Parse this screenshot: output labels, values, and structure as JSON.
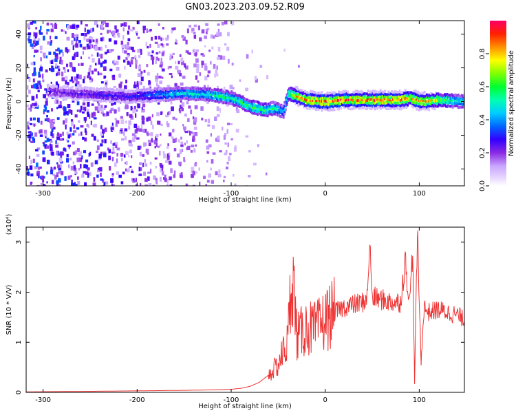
{
  "title": "GN03.2023.203.09.52.R09",
  "colorbar": {
    "label": "Normalized spectral amplitude",
    "ticks": [
      0.0,
      0.2,
      0.4,
      0.6,
      0.8
    ],
    "tick_labels": [
      "0.0",
      "0.2",
      "0.4",
      "0.6",
      "0.8"
    ],
    "range": [
      0,
      1
    ],
    "colors": [
      "#ffffff",
      "#e6d6ff",
      "#c9a6ff",
      "#8a2be2",
      "#6a00ff",
      "#3300ff",
      "#0033ff",
      "#00a0ff",
      "#00ffd0",
      "#00ff40",
      "#80ff00",
      "#ffff00",
      "#ffa000",
      "#ff2a00",
      "#ff0066"
    ]
  },
  "chart_data": [
    {
      "type": "heatmap",
      "xlabel": "Height of straight line (km)",
      "ylabel": "Frequency (Hz)",
      "xlim": [
        -318,
        148
      ],
      "ylim": [
        -50,
        48
      ],
      "xticks": [
        -300,
        -200,
        -100,
        0,
        100
      ],
      "xtick_labels": [
        "-300",
        "-200",
        "-100",
        "0",
        "100"
      ],
      "yticks": [
        -40,
        -20,
        0,
        20,
        40
      ],
      "ytick_labels": [
        "-40",
        "-20",
        "0",
        "20",
        "40"
      ],
      "ridge": {
        "x": [
          -295,
          -270,
          -240,
          -210,
          -180,
          -150,
          -120,
          -100,
          -80,
          -65,
          -55,
          -45,
          -40,
          -30,
          -20,
          0,
          20,
          40,
          60,
          80,
          90,
          100,
          120,
          148
        ],
        "y": [
          6,
          5,
          4,
          3,
          4,
          5,
          4,
          2,
          -3,
          -5,
          -4,
          -6,
          5,
          3,
          1,
          0,
          1,
          1,
          1,
          1,
          2,
          0,
          1,
          0
        ],
        "amplitude": [
          0.25,
          0.25,
          0.3,
          0.3,
          0.4,
          0.5,
          0.55,
          0.55,
          0.6,
          0.6,
          0.55,
          0.45,
          0.6,
          0.85,
          0.9,
          0.92,
          0.9,
          0.9,
          0.9,
          0.88,
          0.8,
          0.9,
          0.7,
          0.5
        ]
      }
    },
    {
      "type": "line",
      "xlabel": "Height of straight line (km)",
      "ylabel": "SNR (10 * V/V)",
      "yscale_label": "(x10⁴)",
      "xlim": [
        -318,
        148
      ],
      "ylim": [
        0,
        3.3
      ],
      "xticks": [
        -300,
        -200,
        -100,
        0,
        100
      ],
      "xtick_labels": [
        "-300",
        "-200",
        "-100",
        "0",
        "100"
      ],
      "yticks": [
        0,
        1,
        2,
        3
      ],
      "ytick_labels": [
        "0",
        "1",
        "2",
        "3"
      ],
      "series": [
        {
          "color": "#ee3333",
          "x": [
            -318,
            -250,
            -200,
            -150,
            -120,
            -100,
            -90,
            -80,
            -70,
            -60,
            -50,
            -45,
            -40,
            -35,
            -30,
            -25,
            -20,
            -10,
            0,
            10,
            20,
            30,
            40,
            45,
            47,
            50,
            60,
            70,
            80,
            85,
            90,
            93,
            95,
            97,
            98,
            100,
            102,
            105,
            110,
            120,
            130,
            140,
            148
          ],
          "y": [
            0.01,
            0.02,
            0.03,
            0.04,
            0.05,
            0.06,
            0.08,
            0.12,
            0.2,
            0.35,
            0.55,
            0.8,
            1.0,
            2.5,
            1.1,
            1.2,
            1.3,
            1.25,
            1.45,
            1.6,
            1.7,
            1.75,
            1.8,
            1.9,
            3.05,
            1.9,
            1.85,
            1.8,
            1.8,
            2.6,
            1.8,
            2.9,
            0.15,
            2.2,
            3.25,
            1.8,
            0.6,
            1.7,
            1.6,
            1.65,
            1.6,
            1.55,
            1.45
          ]
        }
      ]
    }
  ]
}
